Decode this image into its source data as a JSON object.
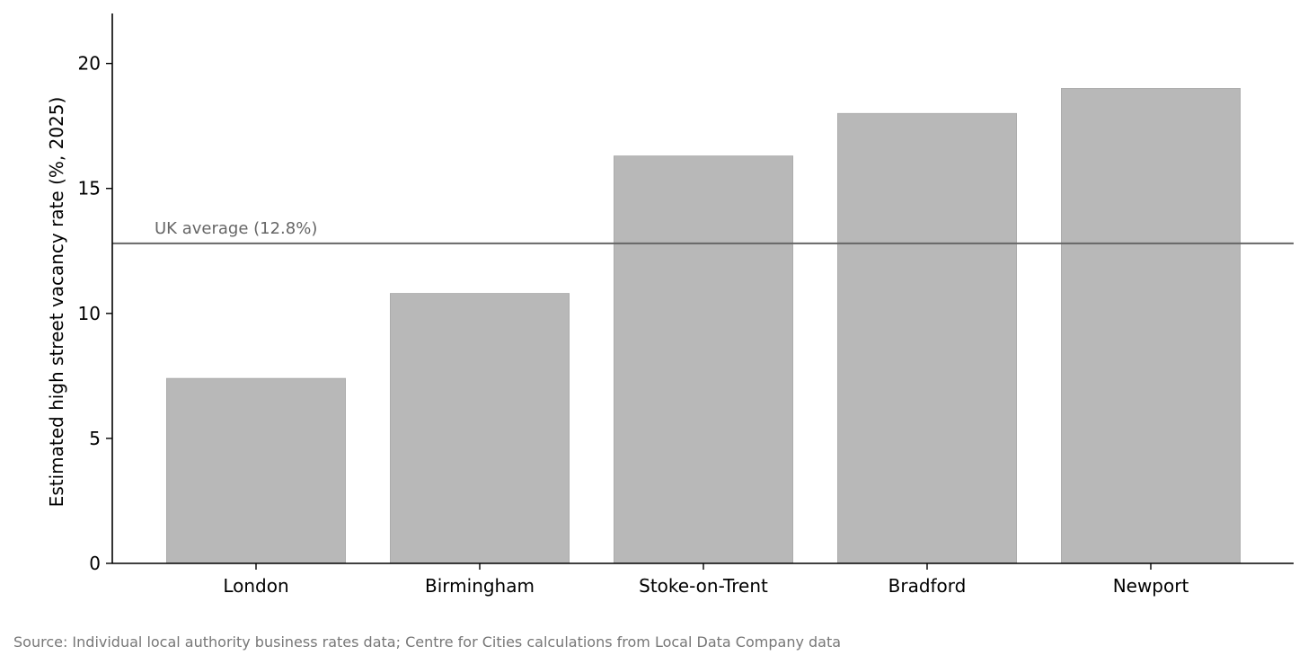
{
  "chart_data": {
    "type": "bar",
    "categories": [
      "London",
      "Birmingham",
      "Stoke-on-Trent",
      "Bradford",
      "Newport"
    ],
    "values": [
      7.4,
      10.8,
      16.3,
      18.0,
      19.0
    ],
    "title": "",
    "xlabel": "",
    "ylabel": "Estimated high street vacancy rate (%, 2025)",
    "ylim": [
      0,
      22
    ],
    "yticks": [
      0,
      5,
      10,
      15,
      20
    ],
    "grid": false,
    "bar_color": "#b8b8b8",
    "reference_line": {
      "value": 12.8,
      "label": "UK average (12.8%)",
      "color": "#666666"
    }
  },
  "source_note": "Source: Individual local authority business rates data; Centre for Cities calculations from Local Data Company data"
}
